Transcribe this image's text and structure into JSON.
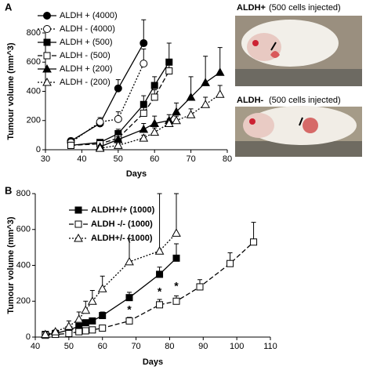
{
  "panels": [
    "A",
    "B"
  ],
  "photos": [
    {
      "label": "ALDH+",
      "note": "(500 cells injected)"
    },
    {
      "label": "ALDH-",
      "note": "(500 cells injected)"
    }
  ],
  "chart_data": [
    {
      "type": "line",
      "xlabel": "Days",
      "ylabel": "Tumour volume (mm^3)",
      "xlim": [
        30,
        80
      ],
      "xticks": [
        30,
        40,
        50,
        60,
        70,
        80
      ],
      "ylim": [
        0,
        800
      ],
      "yticks": [
        0,
        200,
        400,
        600,
        800
      ],
      "series": [
        {
          "name": "ALDH + (4000)",
          "color": "#000000",
          "marker": "circle",
          "filled": true,
          "line_style": "solid",
          "x": [
            37,
            45,
            50,
            57
          ],
          "values": [
            60,
            180,
            420,
            730
          ],
          "errors": [
            20,
            30,
            60,
            160
          ]
        },
        {
          "name": "ALDH - (4000)",
          "color": "#000000",
          "marker": "circle",
          "filled": false,
          "line_style": "dotted",
          "x": [
            37,
            45,
            50,
            57
          ],
          "values": [
            50,
            190,
            210,
            590
          ],
          "errors": [
            15,
            30,
            50,
            100
          ]
        },
        {
          "name": "ALDH + (500)",
          "color": "#000000",
          "marker": "square",
          "filled": true,
          "line_style": "solid",
          "x": [
            37,
            45,
            50,
            57,
            60,
            64
          ],
          "values": [
            30,
            50,
            110,
            310,
            440,
            600
          ],
          "errors": [
            10,
            15,
            30,
            60,
            60,
            130
          ]
        },
        {
          "name": "ALDH - (500)",
          "color": "#000000",
          "marker": "square",
          "filled": false,
          "line_style": "dashed",
          "x": [
            37,
            45,
            50,
            57,
            60,
            64
          ],
          "values": [
            30,
            40,
            80,
            250,
            360,
            540
          ],
          "errors": [
            10,
            10,
            20,
            40,
            50,
            60
          ]
        },
        {
          "name": "ALDH + (200)",
          "color": "#000000",
          "marker": "triangle",
          "filled": true,
          "line_style": "solid",
          "x": [
            45,
            50,
            57,
            60,
            64,
            66,
            70,
            74,
            78
          ],
          "values": [
            20,
            70,
            140,
            180,
            200,
            260,
            360,
            460,
            530
          ],
          "errors": [
            10,
            20,
            40,
            50,
            40,
            60,
            140,
            180,
            170
          ]
        },
        {
          "name": "ALDH - (200)",
          "color": "#000000",
          "marker": "triangle",
          "filled": false,
          "line_style": "dotted",
          "x": [
            45,
            50,
            57,
            60,
            64,
            66,
            70,
            74,
            78
          ],
          "values": [
            10,
            30,
            80,
            120,
            180,
            200,
            240,
            310,
            380
          ],
          "errors": [
            5,
            10,
            20,
            30,
            30,
            30,
            40,
            50,
            60
          ]
        }
      ]
    },
    {
      "type": "line",
      "xlabel": "Days",
      "ylabel": "Tumour volume (mm^3)",
      "xlim": [
        40,
        110
      ],
      "xticks": [
        40,
        50,
        60,
        70,
        80,
        90,
        100,
        110
      ],
      "ylim": [
        0,
        800
      ],
      "yticks": [
        0,
        200,
        400,
        600,
        800
      ],
      "series": [
        {
          "name": "ALDH+/+ (1000)",
          "color": "#000000",
          "marker": "square",
          "filled": true,
          "line_style": "solid",
          "x": [
            43,
            46,
            50,
            53,
            55,
            57,
            60,
            68,
            77,
            82
          ],
          "values": [
            15,
            20,
            40,
            60,
            80,
            90,
            120,
            220,
            350,
            440
          ],
          "errors": [
            5,
            5,
            10,
            10,
            15,
            15,
            20,
            30,
            40,
            80
          ]
        },
        {
          "name": "ALDH -/- (1000)",
          "color": "#000000",
          "marker": "square",
          "filled": false,
          "line_style": "dashed",
          "x": [
            43,
            46,
            50,
            53,
            55,
            57,
            60,
            68,
            77,
            82,
            89,
            98,
            105
          ],
          "values": [
            10,
            15,
            20,
            30,
            35,
            40,
            50,
            90,
            180,
            200,
            280,
            410,
            530
          ],
          "errors": [
            5,
            5,
            5,
            10,
            10,
            10,
            10,
            20,
            30,
            30,
            40,
            60,
            110
          ]
        },
        {
          "name": "ALDH+/- (1000)",
          "color": "#000000",
          "marker": "triangle",
          "filled": false,
          "line_style": "dotted",
          "x": [
            43,
            46,
            50,
            53,
            55,
            57,
            60,
            68,
            77,
            82
          ],
          "values": [
            15,
            30,
            60,
            100,
            150,
            200,
            270,
            420,
            480,
            580
          ],
          "errors": [
            5,
            10,
            30,
            40,
            50,
            60,
            70,
            130,
            320,
            220
          ]
        }
      ],
      "annotations": [
        {
          "text": "*",
          "x": 68,
          "y": 150
        },
        {
          "text": "*",
          "x": 77,
          "y": 250
        },
        {
          "text": "*",
          "x": 82,
          "y": 280
        }
      ]
    }
  ]
}
